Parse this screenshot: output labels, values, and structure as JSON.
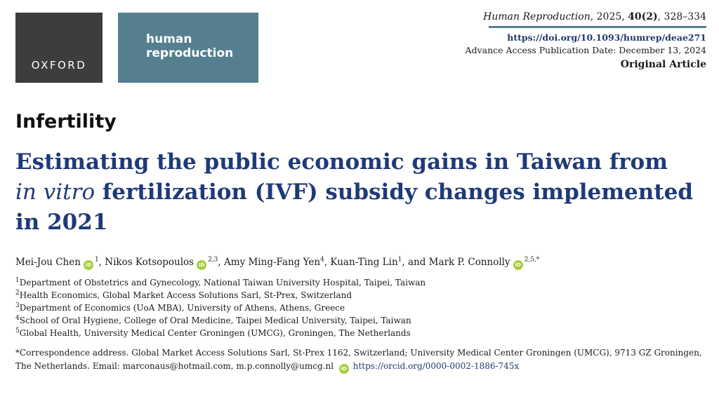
{
  "logos": {
    "publisher": "OXFORD",
    "journal_line1": "human",
    "journal_line2": "reproduction"
  },
  "header": {
    "journal": "Human Reproduction",
    "year": ", 2025, ",
    "volume": "40(2)",
    "pages": ", 328–334",
    "doi": "https://doi.org/10.1093/humrep/deae271",
    "pub_date": "Advance Access Publication Date: December 13, 2024",
    "article_type": "Original Article"
  },
  "section": "Infertility",
  "title": {
    "line1": "Estimating the public economic gains in Taiwan from",
    "italic": "in vitro",
    "line2_rest": " fertilization (IVF) subsidy changes implemented",
    "line3": "in 2021"
  },
  "authors": [
    {
      "name": "Mei-Jou Chen",
      "orcid": true,
      "sup": "1",
      "sep": ", "
    },
    {
      "name": "Nikos Kotsopoulos",
      "orcid": true,
      "sup": "2,3",
      "sep": ", "
    },
    {
      "name": "Amy Ming-Fang Yen",
      "orcid": false,
      "sup": "4",
      "sep": ", "
    },
    {
      "name": "Kuan-Ting Lin",
      "orcid": false,
      "sup": "1",
      "sep": ", and "
    },
    {
      "name": "Mark P. Connolly",
      "orcid": true,
      "sup": "2,5,*",
      "sep": ""
    }
  ],
  "orcid_badge": "iD",
  "affiliations": [
    {
      "num": "1",
      "text": "Department of Obstetrics and Gynecology, National Taiwan University Hospital, Taipei, Taiwan"
    },
    {
      "num": "2",
      "text": "Health Economics, Global Market Access Solutions Sarl, St-Prex, Switzerland"
    },
    {
      "num": "3",
      "text": "Department of Economics (UoA MBA), University of Athens, Athens, Greece"
    },
    {
      "num": "4",
      "text": "School of Oral Hygiene, College of Oral Medicine, Taipei Medical University, Taipei, Taiwan"
    },
    {
      "num": "5",
      "text": "Global Health, University Medical Center Groningen (UMCG), Groningen, The Netherlands"
    }
  ],
  "correspondence": {
    "line1": "*Correspondence address. Global Market Access Solutions Sarl, St-Prex 1162, Switzerland; University Medical Center Groningen (UMCG), 9713 GZ Groningen,",
    "line2": "The Netherlands. Email: marconaus@hotmail.com, m.p.connolly@umcg.nl",
    "orcid_url": "https://orcid.org/0000-0002-1886-745x"
  },
  "colors": {
    "title": "#1f3a78",
    "logo_dark": "#3d3d3d",
    "logo_teal": "#557f8f",
    "orcid": "#a6ce39"
  }
}
